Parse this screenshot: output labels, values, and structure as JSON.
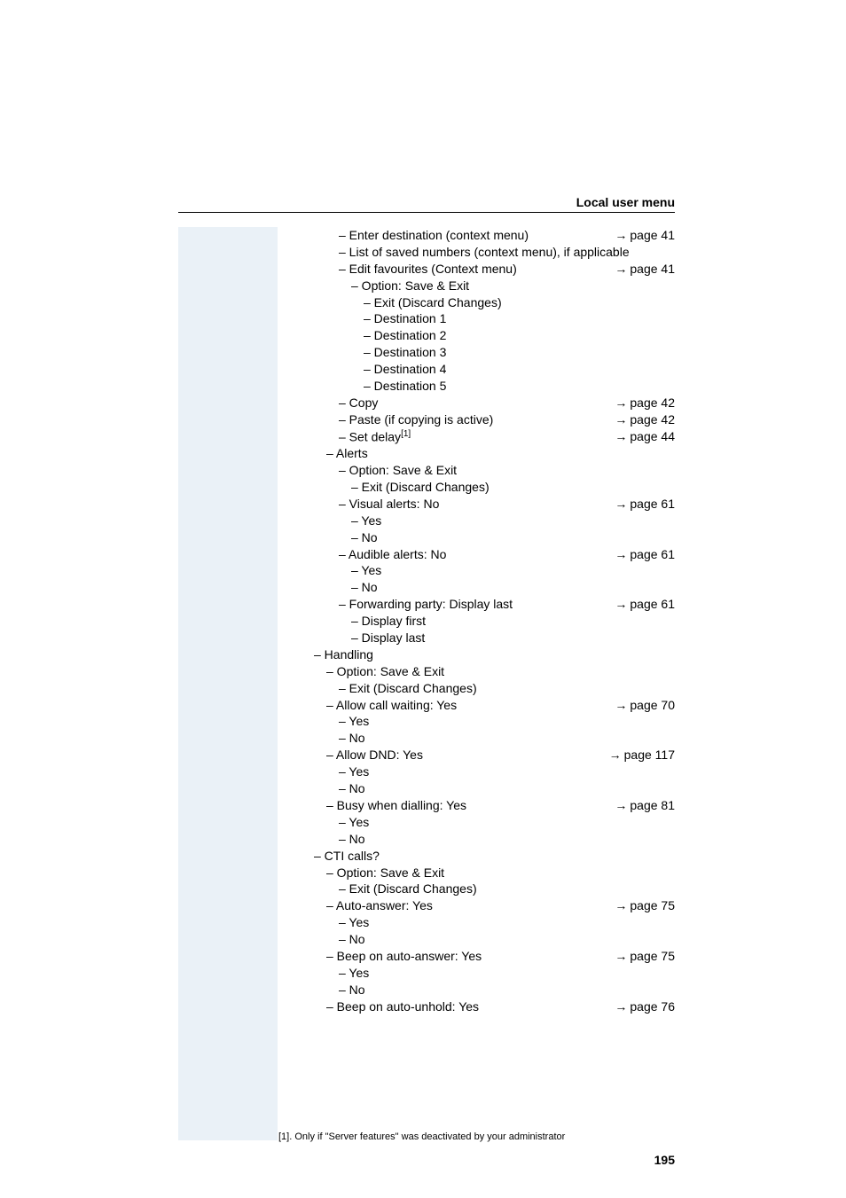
{
  "header": {
    "title": "Local user menu"
  },
  "arrow_glyph": "→",
  "items": [
    {
      "indent": 3,
      "text": "– Enter destination (context menu)",
      "ref": "page 41"
    },
    {
      "indent": 3,
      "text": "– List of saved numbers (context menu), if applicable",
      "ref": null
    },
    {
      "indent": 3,
      "text": "– Edit favourites (Context menu)",
      "ref": "page 41"
    },
    {
      "indent": 4,
      "text": "– Option: Save & Exit",
      "ref": null
    },
    {
      "indent": 5,
      "text": "– Exit (Discard Changes)",
      "ref": null
    },
    {
      "indent": 5,
      "text": "– Destination 1",
      "ref": null
    },
    {
      "indent": 5,
      "text": "– Destination 2",
      "ref": null
    },
    {
      "indent": 5,
      "text": "– Destination 3",
      "ref": null
    },
    {
      "indent": 5,
      "text": "– Destination 4",
      "ref": null
    },
    {
      "indent": 5,
      "text": "– Destination 5",
      "ref": null
    },
    {
      "indent": 3,
      "text": "– Copy",
      "ref": "page 42"
    },
    {
      "indent": 3,
      "text": "– Paste (if copying is active)",
      "ref": "page 42"
    },
    {
      "indent": 3,
      "text": "– Set delay",
      "sup": "[1]",
      "ref": "page 44"
    },
    {
      "indent": 2,
      "text": "– Alerts",
      "ref": null
    },
    {
      "indent": 3,
      "text": "– Option: Save & Exit",
      "ref": null
    },
    {
      "indent": 4,
      "text": "– Exit (Discard Changes)",
      "ref": null
    },
    {
      "indent": 3,
      "text": "– Visual alerts: No",
      "ref": "page 61"
    },
    {
      "indent": 4,
      "text": "– Yes",
      "ref": null
    },
    {
      "indent": 4,
      "text": "– No",
      "ref": null
    },
    {
      "indent": 3,
      "text": "– Audible alerts: No",
      "ref": "page 61"
    },
    {
      "indent": 4,
      "text": "– Yes",
      "ref": null
    },
    {
      "indent": 4,
      "text": "– No",
      "ref": null
    },
    {
      "indent": 3,
      "text": "– Forwarding party: Display last",
      "ref": "page 61"
    },
    {
      "indent": 4,
      "text": "– Display first",
      "ref": null
    },
    {
      "indent": 4,
      "text": "– Display last",
      "ref": null
    },
    {
      "indent": 1,
      "text": "– Handling",
      "ref": null
    },
    {
      "indent": 2,
      "text": "– Option: Save & Exit",
      "ref": null
    },
    {
      "indent": 3,
      "text": "– Exit (Discard Changes)",
      "ref": null
    },
    {
      "indent": 2,
      "text": "– Allow call waiting: Yes",
      "ref": "page 70"
    },
    {
      "indent": 3,
      "text": "– Yes",
      "ref": null
    },
    {
      "indent": 3,
      "text": "– No",
      "ref": null
    },
    {
      "indent": 2,
      "text": "– Allow DND: Yes",
      "ref": "page 117"
    },
    {
      "indent": 3,
      "text": "– Yes",
      "ref": null
    },
    {
      "indent": 3,
      "text": "– No",
      "ref": null
    },
    {
      "indent": 2,
      "text": "– Busy when dialling: Yes",
      "ref": "page 81"
    },
    {
      "indent": 3,
      "text": "– Yes",
      "ref": null
    },
    {
      "indent": 3,
      "text": "– No",
      "ref": null
    },
    {
      "indent": 1,
      "text": "– CTI calls?",
      "ref": null
    },
    {
      "indent": 2,
      "text": "– Option: Save & Exit",
      "ref": null
    },
    {
      "indent": 3,
      "text": "– Exit (Discard Changes)",
      "ref": null
    },
    {
      "indent": 2,
      "text": "– Auto-answer: Yes",
      "ref": "page 75"
    },
    {
      "indent": 3,
      "text": "– Yes",
      "ref": null
    },
    {
      "indent": 3,
      "text": "– No",
      "ref": null
    },
    {
      "indent": 2,
      "text": "– Beep on auto-answer: Yes",
      "ref": "page 75"
    },
    {
      "indent": 3,
      "text": "– Yes",
      "ref": null
    },
    {
      "indent": 3,
      "text": "– No",
      "ref": null
    },
    {
      "indent": 2,
      "text": "– Beep on auto-unhold: Yes",
      "ref": "page 76"
    }
  ],
  "footnote": "[1].  Only if \"Server features\" was deactivated by your administrator",
  "page_number": "195"
}
